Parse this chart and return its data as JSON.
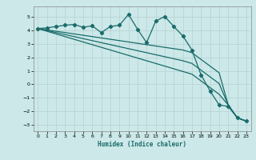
{
  "xlabel": "Humidex (Indice chaleur)",
  "background_color": "#cce8e8",
  "grid_color": "#b8d4d4",
  "line_color": "#1a6b6b",
  "xlim": [
    -0.5,
    23.5
  ],
  "ylim": [
    -3.5,
    5.8
  ],
  "yticks": [
    -3,
    -2,
    -1,
    0,
    1,
    2,
    3,
    4,
    5
  ],
  "xticks": [
    0,
    1,
    2,
    3,
    4,
    5,
    6,
    7,
    8,
    9,
    10,
    11,
    12,
    13,
    14,
    15,
    16,
    17,
    18,
    19,
    20,
    21,
    22,
    23
  ],
  "series1_x": [
    0,
    1,
    2,
    3,
    4,
    5,
    6,
    7,
    8,
    9,
    10,
    11,
    12,
    13,
    14,
    15,
    16,
    17,
    18,
    19,
    20,
    21,
    22,
    23
  ],
  "series1_y": [
    4.15,
    4.2,
    4.3,
    4.4,
    4.45,
    4.25,
    4.35,
    3.85,
    4.3,
    4.4,
    5.2,
    4.1,
    3.1,
    4.7,
    5.05,
    4.3,
    3.6,
    2.55,
    0.7,
    -0.5,
    -1.55,
    -1.65,
    -2.5,
    -2.75
  ],
  "series2_x": [
    0,
    1,
    2,
    3,
    4,
    5,
    6,
    7,
    8,
    9,
    10,
    11,
    12,
    13,
    14,
    15,
    16,
    17,
    18,
    19,
    20,
    21,
    22,
    23
  ],
  "series2_y": [
    4.15,
    4.05,
    3.95,
    3.85,
    3.75,
    3.65,
    3.55,
    3.45,
    3.35,
    3.25,
    3.15,
    3.05,
    2.95,
    2.85,
    2.75,
    2.65,
    2.55,
    2.35,
    1.85,
    1.35,
    0.85,
    -1.55,
    -2.5,
    -2.75
  ],
  "series3_x": [
    0,
    1,
    2,
    3,
    4,
    5,
    6,
    7,
    8,
    9,
    10,
    11,
    12,
    13,
    14,
    15,
    16,
    17,
    18,
    19,
    20,
    21,
    22,
    23
  ],
  "series3_y": [
    4.15,
    4.0,
    3.85,
    3.7,
    3.55,
    3.4,
    3.25,
    3.1,
    2.95,
    2.8,
    2.65,
    2.5,
    2.35,
    2.2,
    2.05,
    1.9,
    1.75,
    1.55,
    1.05,
    0.55,
    0.05,
    -1.55,
    -2.5,
    -2.75
  ],
  "series4_x": [
    0,
    1,
    2,
    3,
    4,
    5,
    6,
    7,
    8,
    9,
    10,
    11,
    12,
    13,
    14,
    15,
    16,
    17,
    18,
    19,
    20,
    21,
    22,
    23
  ],
  "series4_y": [
    4.15,
    3.95,
    3.75,
    3.55,
    3.35,
    3.15,
    2.95,
    2.75,
    2.55,
    2.35,
    2.15,
    1.95,
    1.75,
    1.55,
    1.35,
    1.15,
    0.95,
    0.75,
    0.25,
    -0.25,
    -0.75,
    -1.55,
    -2.5,
    -2.75
  ]
}
